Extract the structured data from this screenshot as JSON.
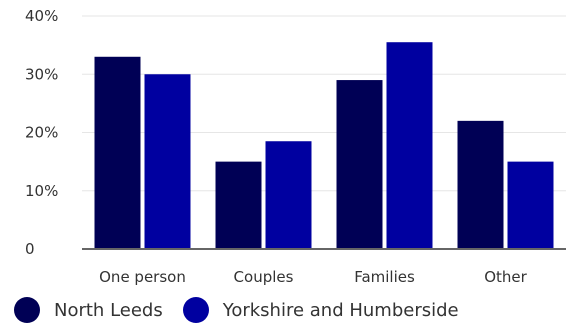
{
  "chart_data": {
    "type": "bar",
    "categories": [
      "One person",
      "Couples",
      "Families",
      "Other"
    ],
    "series": [
      {
        "name": "North Leeds",
        "values": [
          33,
          15,
          29,
          22
        ],
        "color": "#000055"
      },
      {
        "name": "Yorkshire and Humberside",
        "values": [
          30,
          18.5,
          35.5,
          15
        ],
        "color": "#0000a0"
      }
    ],
    "ylim": [
      0,
      40
    ],
    "yticks": [
      0,
      10,
      20,
      30,
      40
    ],
    "ytick_labels": [
      "0",
      "10%",
      "20%",
      "30%",
      "40%"
    ],
    "grid": true,
    "legend": "bottom-left",
    "title": "",
    "xlabel": "",
    "ylabel": ""
  }
}
